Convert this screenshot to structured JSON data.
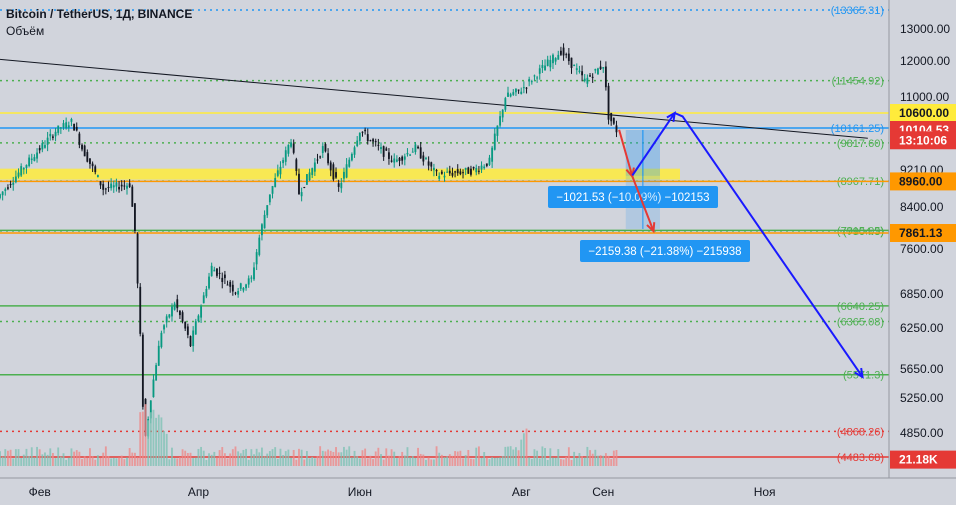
{
  "chart_data": {
    "type": "candlestick",
    "title": "Bitcoin / TetherUS, 1Д, BINANCE",
    "volume_label": "Объём",
    "symbol": "Bitcoin / TetherUS",
    "interval": "1Д",
    "exchange": "BINANCE",
    "ylim": [
      4300,
      13600
    ],
    "xlim": [
      "2020-01-17",
      "2020-12-18"
    ],
    "x_ticks": [
      {
        "date": "2020-02-01",
        "label": "Фев"
      },
      {
        "date": "2020-04-01",
        "label": "Апр"
      },
      {
        "date": "2020-06-01",
        "label": "Июн"
      },
      {
        "date": "2020-08-01",
        "label": "Авг"
      },
      {
        "date": "2020-09-01",
        "label": "Сен"
      },
      {
        "date": "2020-11-01",
        "label": "Ноя"
      }
    ],
    "y_ticks": [
      "13000.00",
      "12000.00",
      "11000.00",
      "9210.00",
      "8400.00",
      "7600.00",
      "6850.00",
      "6250.00",
      "5650.00",
      "5250.00",
      "4850.00"
    ],
    "y_tick_values": [
      13000,
      12000,
      11000,
      9210,
      8400,
      7600,
      6850,
      6250,
      5650,
      5250,
      4850
    ],
    "price_tags": [
      {
        "value": 10600,
        "label": "10600.00",
        "bg": "#ffeb3b",
        "fg": "#131722",
        "bold": true
      },
      {
        "value": 10104.53,
        "label": "10104.53",
        "bg": "#e53935",
        "fg": "#ffffff",
        "bold": true
      },
      {
        "value": 9875,
        "label": "13:10:06",
        "bg": "#e53935",
        "fg": "#ffffff",
        "bold": true
      },
      {
        "value": 8960,
        "label": "8960.00",
        "bg": "#ff9800",
        "fg": "#131722",
        "bold": true
      },
      {
        "value": 7861.13,
        "label": "7861.13",
        "bg": "#ff9800",
        "fg": "#131722",
        "bold": true
      },
      {
        "value": 4440,
        "label": "21.18K",
        "bg": "#e53935",
        "fg": "#ffffff",
        "bold": true
      }
    ],
    "levels": [
      {
        "value": 13365.31,
        "label": "(13365.31)",
        "color": "#2196f3",
        "style": "dotted",
        "tag": true
      },
      {
        "value": 11454.92,
        "label": "(11454.92)",
        "color": "#4caf50",
        "style": "dotted",
        "tag": true
      },
      {
        "value": 10600,
        "label": "",
        "color": "#ffeb3b",
        "style": "solid",
        "tag": false
      },
      {
        "value": 10161.25,
        "label": "(10161.25)",
        "color": "#2196f3",
        "style": "solid",
        "tag": true
      },
      {
        "value": 9817.6,
        "label": "(9817.60)",
        "color": "#4caf50",
        "style": "dotted",
        "tag": true
      },
      {
        "value": 8967.71,
        "label": "(8967.71)",
        "color": "#4caf50",
        "style": "dotted",
        "tag": true
      },
      {
        "value": 8960,
        "label": "",
        "color": "#ff9800",
        "style": "solid",
        "tag": false
      },
      {
        "value": 7915.05,
        "label": "(7915.05)",
        "color": "#4caf50",
        "style": "solid",
        "tag": true
      },
      {
        "value": 7904.3,
        "label": "(7904.3)",
        "color": "#4caf50",
        "style": "dotted",
        "tag": true
      },
      {
        "value": 7861.13,
        "label": "",
        "color": "#ff9800",
        "style": "solid",
        "tag": false
      },
      {
        "value": 6640.25,
        "label": "(6640.25)",
        "color": "#4caf50",
        "style": "solid",
        "tag": true
      },
      {
        "value": 6365.08,
        "label": "(6365.08)",
        "color": "#4caf50",
        "style": "dotted",
        "tag": true
      },
      {
        "value": 5571.3,
        "label": "(5571.3)",
        "color": "#4caf50",
        "style": "solid",
        "tag": true
      },
      {
        "value": 4868.26,
        "label": "(4868.26)",
        "color": "#e53935",
        "style": "dotted",
        "tag": true
      },
      {
        "value": 4483.68,
        "label": "(4483.68)",
        "color": "#e53935",
        "style": "solid",
        "tag": true
      }
    ],
    "zone": {
      "from": 9000,
      "to": 9240,
      "color": "#ffeb3b"
    },
    "trendline": {
      "points": [
        [
          "2020-01-17",
          12050
        ],
        [
          "2020-12-10",
          9920
        ]
      ],
      "color": "#131722"
    },
    "measures": [
      {
        "label": "−1021.53 (−10.09%) −102153",
        "from_date": "2020-09-08",
        "to_date": "2020-09-30",
        "from_value": 10104.53,
        "to_value": 9083
      },
      {
        "label": "−2159.38 (−21.38%) −215938",
        "from_date": "2020-09-08",
        "to_date": "2020-09-30",
        "from_value": 10104.53,
        "to_value": 7945
      }
    ],
    "projections": [
      {
        "color": "#e53935",
        "points": [
          [
            "2020-09-07",
            10110
          ],
          [
            "2020-09-12",
            9070
          ]
        ]
      },
      {
        "color": "#e53935",
        "points": [
          [
            "2020-09-12",
            9070
          ],
          [
            "2020-09-20",
            7900
          ]
        ]
      },
      {
        "color": "#1a1aff",
        "points": [
          [
            "2020-09-12",
            9090
          ],
          [
            "2020-09-28",
            10600
          ]
        ]
      },
      {
        "color": "#1a1aff",
        "points": [
          [
            "2020-09-28",
            10600
          ],
          [
            "2020-10-01",
            10500
          ],
          [
            "2020-12-08",
            5540
          ]
        ]
      }
    ],
    "anchors": [
      {
        "date": "2020-01-17",
        "value": 8600
      },
      {
        "date": "2020-01-28",
        "value": 9350
      },
      {
        "date": "2020-02-09",
        "value": 10150
      },
      {
        "date": "2020-02-14",
        "value": 10350
      },
      {
        "date": "2020-02-18",
        "value": 9700
      },
      {
        "date": "2020-02-26",
        "value": 8800
      },
      {
        "date": "2020-03-07",
        "value": 8900
      },
      {
        "date": "2020-03-09",
        "value": 7900
      },
      {
        "date": "2020-03-12",
        "value": 5200
      },
      {
        "date": "2020-03-13",
        "value": 4800
      },
      {
        "date": "2020-03-19",
        "value": 6200
      },
      {
        "date": "2020-03-24",
        "value": 6700
      },
      {
        "date": "2020-03-30",
        "value": 6000
      },
      {
        "date": "2020-04-07",
        "value": 7300
      },
      {
        "date": "2020-04-16",
        "value": 6900
      },
      {
        "date": "2020-04-22",
        "value": 7100
      },
      {
        "date": "2020-04-29",
        "value": 8700
      },
      {
        "date": "2020-05-07",
        "value": 9900
      },
      {
        "date": "2020-05-10",
        "value": 8700
      },
      {
        "date": "2020-05-19",
        "value": 9700
      },
      {
        "date": "2020-05-25",
        "value": 8800
      },
      {
        "date": "2020-06-02",
        "value": 10100
      },
      {
        "date": "2020-06-09",
        "value": 9700
      },
      {
        "date": "2020-06-15",
        "value": 9400
      },
      {
        "date": "2020-06-23",
        "value": 9700
      },
      {
        "date": "2020-07-01",
        "value": 9100
      },
      {
        "date": "2020-07-15",
        "value": 9200
      },
      {
        "date": "2020-07-21",
        "value": 9400
      },
      {
        "date": "2020-07-27",
        "value": 11000
      },
      {
        "date": "2020-08-02",
        "value": 11200
      },
      {
        "date": "2020-08-10",
        "value": 11800
      },
      {
        "date": "2020-08-17",
        "value": 12300
      },
      {
        "date": "2020-08-26",
        "value": 11450
      },
      {
        "date": "2020-09-02",
        "value": 11900
      },
      {
        "date": "2020-09-04",
        "value": 10500
      },
      {
        "date": "2020-09-07",
        "value": 10104
      }
    ],
    "last_date": "2020-09-07",
    "colors": {
      "up": "#089981",
      "down": "#131722",
      "volume_up": "#80c2b5",
      "volume_down": "#ee8a8a",
      "background": "#d1d4dc"
    }
  }
}
